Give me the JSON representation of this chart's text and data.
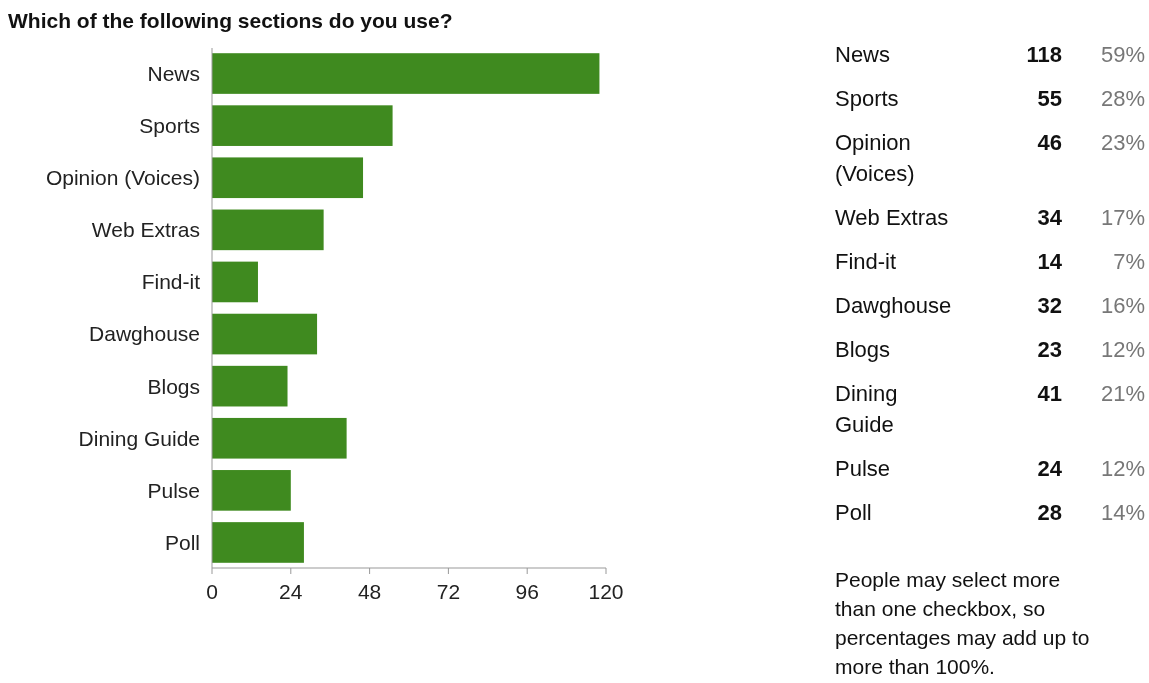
{
  "chart_data": [
    {
      "type": "bar",
      "orientation": "horizontal",
      "title": "Which of the following sections do you use?",
      "categories": [
        "News",
        "Sports",
        "Opinion (Voices)",
        "Web Extras",
        "Find-it",
        "Dawghouse",
        "Blogs",
        "Dining Guide",
        "Pulse",
        "Poll"
      ],
      "values": [
        118,
        55,
        46,
        34,
        14,
        32,
        23,
        41,
        24,
        28
      ],
      "color": "#3f8a1f",
      "xlim": [
        0,
        120
      ],
      "xticks": [
        0,
        24,
        48,
        72,
        96,
        120
      ],
      "grid": false
    },
    {
      "type": "other",
      "categories": [
        "News",
        "Sports",
        "Opinion (Voices)",
        "Web Extras",
        "Find-it",
        "Dawghouse",
        "Blogs",
        "Dining Guide",
        "Pulse",
        "Poll"
      ],
      "values": [
        118,
        55,
        46,
        34,
        14,
        32,
        23,
        41,
        24,
        28
      ],
      "data_labels": true
    },
    {
      "type": "other",
      "categories": [
        null,
        null,
        null,
        null,
        null,
        null,
        null,
        null,
        null,
        null
      ],
      "values": [
        59,
        28,
        23,
        17,
        7,
        16,
        12,
        21,
        12,
        14
      ],
      "value_labels": [
        "59%",
        "28%",
        "23%",
        "17%",
        "7%",
        "16%",
        "12%",
        "21%",
        "12%",
        "14%"
      ],
      "annotations": [
        "People may select more than one checkbox, so percentages may add up to more than 100%."
      ]
    }
  ]
}
